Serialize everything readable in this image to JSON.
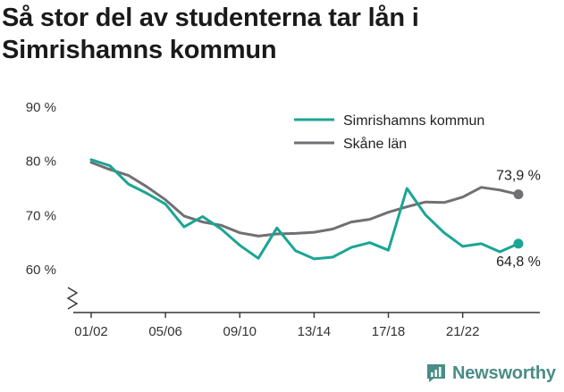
{
  "title_lines": [
    "Så stor del av studenterna tar lån i",
    "Simrishamns kommun"
  ],
  "brand": {
    "name": "Newsworthy",
    "color": "#4a8c87"
  },
  "colors": {
    "series_primary": "#1aa595",
    "series_secondary": "#707074",
    "axis": "#333333"
  },
  "chart_data": {
    "type": "line",
    "title": "Så stor del av studenterna tar lån i Simrishamns kommun",
    "xlabel": "",
    "ylabel": "",
    "ylim": [
      55,
      90
    ],
    "y_ticks": [
      60,
      70,
      80,
      90
    ],
    "y_tick_labels": [
      "60 %",
      "70 %",
      "80 %",
      "90 %"
    ],
    "x_tick_labels": [
      "01/02",
      "05/06",
      "09/10",
      "13/14",
      "17/18",
      "21/22"
    ],
    "x_tick_indices": [
      0,
      4,
      8,
      12,
      16,
      20
    ],
    "axis_break": true,
    "grid": false,
    "legend_position": "top-right",
    "x": [
      "01/02",
      "02/03",
      "03/04",
      "04/05",
      "05/06",
      "06/07",
      "07/08",
      "08/09",
      "09/10",
      "10/11",
      "11/12",
      "12/13",
      "13/14",
      "14/15",
      "15/16",
      "16/17",
      "17/18",
      "18/19",
      "19/20",
      "20/21",
      "21/22",
      "22/23",
      "23/24",
      "24/25"
    ],
    "series": [
      {
        "name": "Simrishamns kommun",
        "color": "#1aa595",
        "values": [
          80.3,
          79.2,
          75.8,
          74.1,
          72.1,
          67.9,
          69.8,
          67.5,
          64.5,
          62.1,
          67.7,
          63.5,
          62.0,
          62.3,
          64.1,
          65.0,
          63.6,
          75.0,
          70.1,
          66.8,
          64.3,
          64.8,
          63.3,
          64.8
        ],
        "end_label": "64,8 %"
      },
      {
        "name": "Skåne län",
        "color": "#707074",
        "values": [
          79.8,
          78.5,
          77.4,
          75.3,
          72.9,
          69.9,
          68.8,
          68.2,
          66.8,
          66.2,
          66.6,
          66.7,
          66.9,
          67.5,
          68.8,
          69.3,
          70.6,
          71.6,
          72.5,
          72.4,
          73.4,
          75.2,
          74.7,
          73.9
        ],
        "end_label": "73,9 %"
      }
    ]
  }
}
